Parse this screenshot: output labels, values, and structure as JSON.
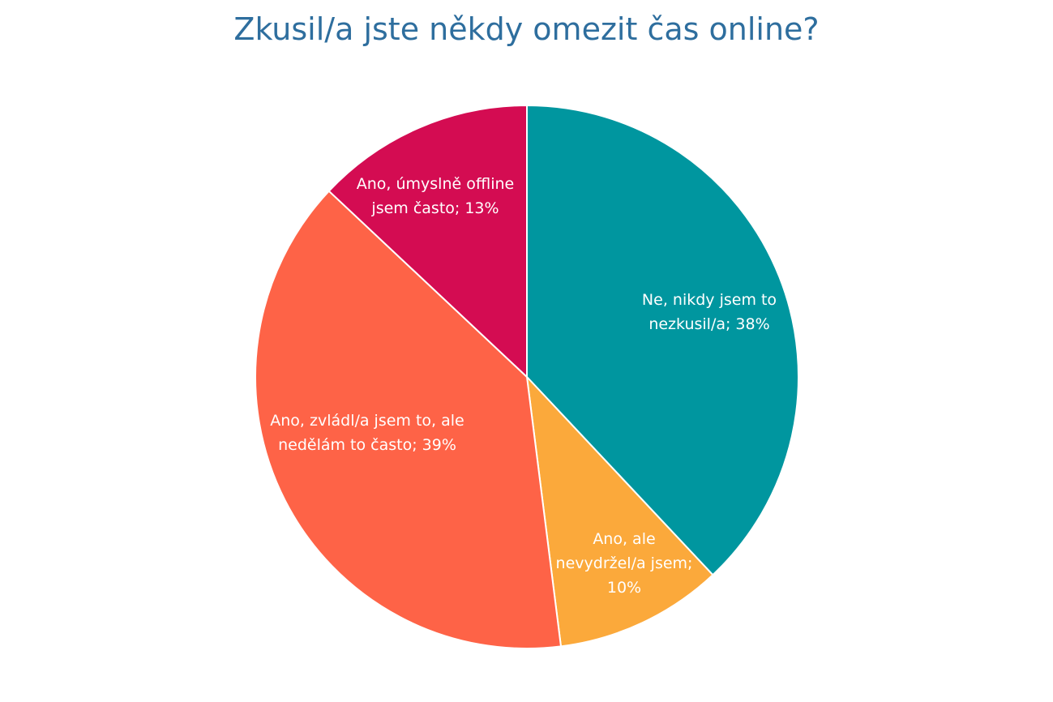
{
  "chart_data": {
    "type": "pie",
    "title": "Zkusil/a jste někdy omezit čas online?",
    "slices": [
      {
        "label": "Ne, nikdy jsem to nezkusil/a",
        "value": 38,
        "display": "38%",
        "label_lines": [
          "Ne, nikdy jsem to",
          "nezkusil/a; 38%"
        ],
        "color": "#00969F"
      },
      {
        "label": "Ano, ale nevydržel/a jsem",
        "value": 10,
        "display": "10%",
        "label_lines": [
          "Ano, ale",
          "nevydržel/a jsem;",
          "10%"
        ],
        "color": "#FBA93B"
      },
      {
        "label": "Ano, zvládl/a jsem to, ale nedělám to často",
        "value": 39,
        "display": "39%",
        "label_lines": [
          "Ano, zvládl/a jsem to, ale",
          "nedělám to často; 39%"
        ],
        "color": "#FE6347"
      },
      {
        "label": "Ano, úmyslně offline jsem často",
        "value": 13,
        "display": "13%",
        "label_lines": [
          "Ano, úmyslně offline",
          "jsem často; 13%"
        ],
        "color": "#D40C52"
      }
    ],
    "start_angle": "12 o'clock",
    "direction": "clockwise",
    "legend": "none"
  }
}
